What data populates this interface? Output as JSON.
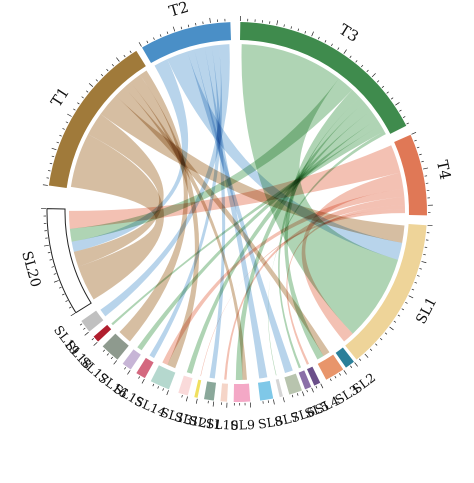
{
  "diagram": {
    "type": "chord",
    "sectors": [
      {
        "id": "T1",
        "label": "T1",
        "start": 278,
        "end": 328,
        "color": "#A07A3A",
        "ribbon": "#CDB08E"
      },
      {
        "id": "T2",
        "label": "T2",
        "start": 330,
        "end": 358,
        "color": "#4A8FC7",
        "ribbon": "#A8CAE6"
      },
      {
        "id": "T3",
        "label": "T3",
        "start": 1,
        "end": 63,
        "color": "#3F8B4D",
        "ribbon": "#9DCBA4"
      },
      {
        "id": "T4",
        "label": "T4",
        "start": 66,
        "end": 91,
        "color": "#E07856",
        "ribbon": "#F0B3A2"
      },
      {
        "id": "SL1",
        "label": "SL1",
        "start": 94,
        "end": 141,
        "color": "#EED499"
      },
      {
        "id": "SL2",
        "label": "SL2",
        "start": 142,
        "end": 145,
        "color": "#2A7F99"
      },
      {
        "id": "SL3",
        "label": "SL3",
        "start": 146,
        "end": 152,
        "color": "#E8956B"
      },
      {
        "id": "SL4",
        "label": "SL4",
        "start": 154,
        "end": 156,
        "color": "#6B4F8A"
      },
      {
        "id": "SL5",
        "label": "SL5",
        "start": 157,
        "end": 159,
        "color": "#8B6FA8"
      },
      {
        "id": "SL6",
        "label": "SL6",
        "start": 160,
        "end": 164,
        "color": "#B8C4AE"
      },
      {
        "id": "SL7",
        "label": "SL7",
        "start": 166,
        "end": 167,
        "color": "#D5D5D5"
      },
      {
        "id": "SL8",
        "label": "SL8",
        "start": 169,
        "end": 173,
        "color": "#7FC8E8"
      },
      {
        "id": "SL9",
        "label": "SL9",
        "start": 176,
        "end": 181,
        "color": "#F4A8C6"
      },
      {
        "id": "SL10",
        "label": "SL10",
        "start": 183,
        "end": 185,
        "color": "#F5D5C8"
      },
      {
        "id": "SL11",
        "label": "SL11",
        "start": 187,
        "end": 190,
        "color": "#8AA89A"
      },
      {
        "id": "SL12",
        "label": "SL12",
        "start": 192,
        "end": 193,
        "color": "#F0E060"
      },
      {
        "id": "SL13",
        "label": "SL13",
        "start": 195,
        "end": 198,
        "color": "#FADADA"
      },
      {
        "id": "SL14",
        "label": "SL14",
        "start": 201,
        "end": 207,
        "color": "#B5D8CE"
      },
      {
        "id": "SL15",
        "label": "SL15",
        "start": 209,
        "end": 212,
        "color": "#D4687F"
      },
      {
        "id": "SL16",
        "label": "SL16",
        "start": 214,
        "end": 217,
        "color": "#C7B5D6"
      },
      {
        "id": "SL17",
        "label": "SL17",
        "start": 219,
        "end": 225,
        "color": "#8E9A8E"
      },
      {
        "id": "SL18",
        "label": "SL18",
        "start": 227,
        "end": 229,
        "color": "#B01E2E"
      },
      {
        "id": "SL19",
        "label": "SL19",
        "start": 231,
        "end": 235,
        "color": "#C0C0C0"
      },
      {
        "id": "SL20",
        "label": "SL20",
        "start": 238,
        "end": 271,
        "color": "#FFFFFF"
      }
    ],
    "links": [
      {
        "from": "T1",
        "to": "SL20",
        "weight": 14
      },
      {
        "from": "T1",
        "to": "SL20",
        "weight": 6
      },
      {
        "from": "T1",
        "to": "SL1",
        "weight": 6
      },
      {
        "from": "T1",
        "to": "SL3",
        "weight": 3
      },
      {
        "from": "T1",
        "to": "SL9",
        "weight": 2
      },
      {
        "from": "T1",
        "to": "SL14",
        "weight": 3
      },
      {
        "from": "T1",
        "to": "SL17",
        "weight": 2
      },
      {
        "from": "T2",
        "to": "SL20",
        "weight": 4
      },
      {
        "from": "T2",
        "to": "SL1",
        "weight": 6
      },
      {
        "from": "T2",
        "to": "SL6",
        "weight": 2
      },
      {
        "from": "T2",
        "to": "SL8",
        "weight": 3
      },
      {
        "from": "T2",
        "to": "SL11",
        "weight": 2
      },
      {
        "from": "T2",
        "to": "SL15",
        "weight": 2
      },
      {
        "from": "T2",
        "to": "SL19",
        "weight": 3
      },
      {
        "from": "T3",
        "to": "SL1",
        "weight": 30
      },
      {
        "from": "T3",
        "to": "SL20",
        "weight": 5
      },
      {
        "from": "T3",
        "to": "SL3",
        "weight": 3
      },
      {
        "from": "T3",
        "to": "SL5",
        "weight": 2
      },
      {
        "from": "T3",
        "to": "SL9",
        "weight": 3
      },
      {
        "from": "T3",
        "to": "SL13",
        "weight": 3
      },
      {
        "from": "T3",
        "to": "SL16",
        "weight": 2
      },
      {
        "from": "T3",
        "to": "SL18",
        "weight": 2
      },
      {
        "from": "T3",
        "to": "SL7",
        "weight": 1
      },
      {
        "from": "T4",
        "to": "SL20",
        "weight": 7
      },
      {
        "from": "T4",
        "to": "SL1",
        "weight": 4
      },
      {
        "from": "T4",
        "to": "SL14",
        "weight": 2
      },
      {
        "from": "T4",
        "to": "SL10",
        "weight": 2
      },
      {
        "from": "T4",
        "to": "SL4",
        "weight": 1
      },
      {
        "from": "T4",
        "to": "SL12",
        "weight": 1
      }
    ]
  }
}
